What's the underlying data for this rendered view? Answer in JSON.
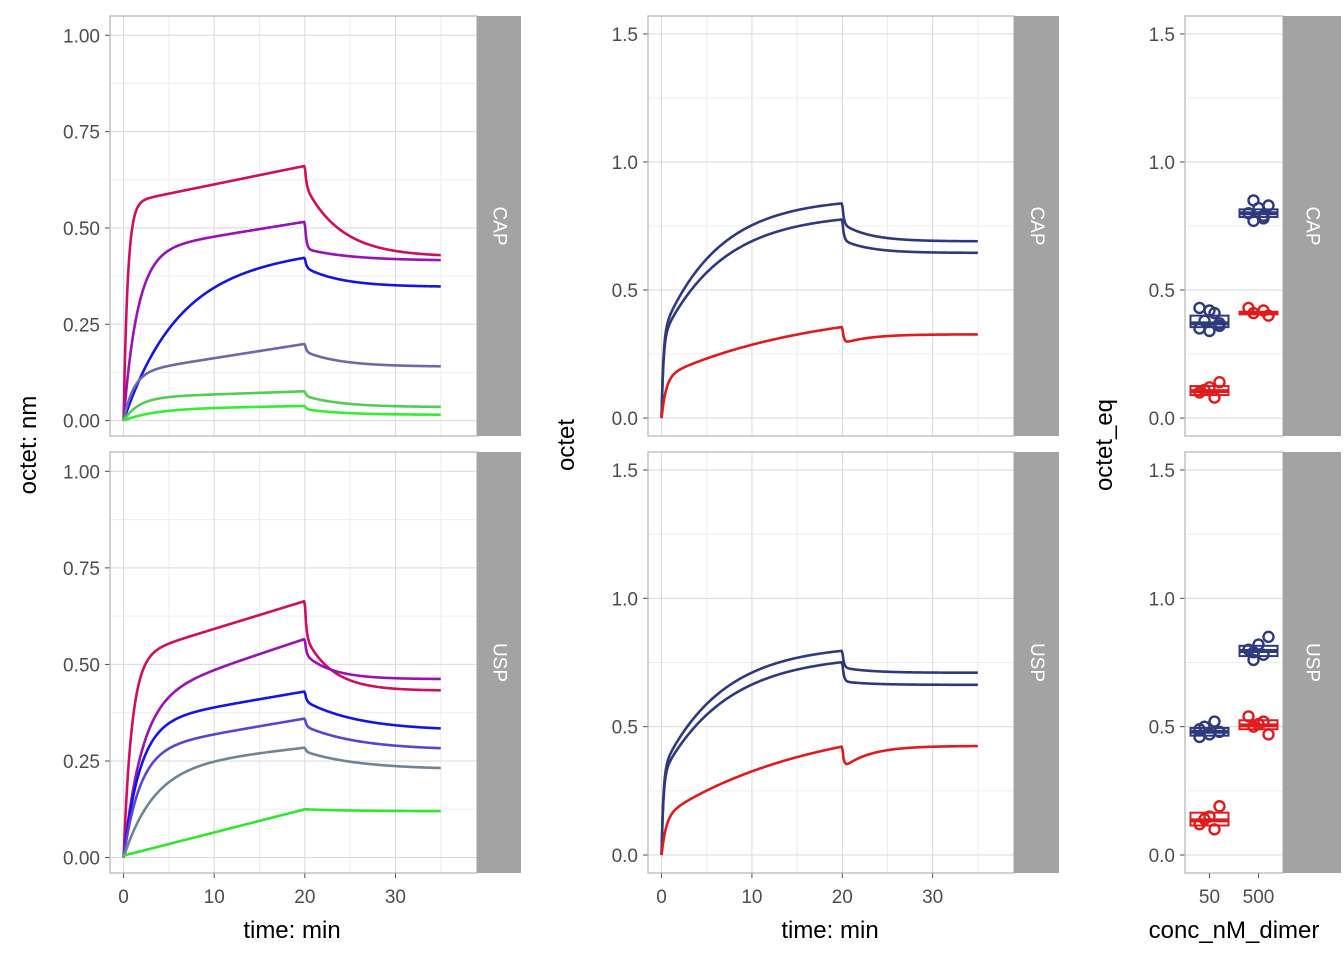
{
  "colors": {
    "panel_border": "#b3b3b3",
    "grid_major": "#d9d9d9",
    "grid_minor": "#ededed",
    "strip_fill": "#a3a3a3",
    "navy": "#2e3a7d",
    "red": "#e31a1c"
  },
  "chart_data": [
    {
      "id": "kinetics",
      "type": "line",
      "xlabel": "time: min",
      "ylabel": "octet: nm",
      "xlim": [
        -1.5,
        39
      ],
      "ylim": [
        -0.04,
        1.05
      ],
      "x_ticks": [
        0,
        10,
        20,
        30
      ],
      "x_tick_labels": [
        "0",
        "10",
        "20",
        "30"
      ],
      "y_ticks": [
        0,
        0.25,
        0.5,
        0.75,
        1
      ],
      "y_tick_labels": [
        "0.00",
        "0.25",
        "0.50",
        "0.75",
        "1.00"
      ],
      "grid": true,
      "legend": "none",
      "facets": [
        {
          "label": "CAP",
          "series": [
            {
              "color": "#d00d5f",
              "kind": "ass_diss",
              "rmax": 0.565,
              "kon": 2.2,
              "slope": 0.0048,
              "tail": 0.425,
              "drop": 0.05,
              "tau": 4
            },
            {
              "color": "#9a11b4",
              "kind": "ass_diss",
              "rmax": 0.44,
              "kon": 0.65,
              "slope": 0.0038,
              "tail": 0.415,
              "drop": 0.07,
              "tau": 5
            },
            {
              "color": "#1414e6",
              "kind": "ass_diss",
              "rmax": 0.4,
              "kon": 0.17,
              "slope": 0.0018,
              "tail": 0.347,
              "drop": 0.025,
              "tau": 4
            },
            {
              "color": "#6b68ad",
              "kind": "ass_diss",
              "rmax": 0.125,
              "kon": 0.9,
              "slope": 0.0037,
              "tail": 0.14,
              "drop": 0.02,
              "tau": 4
            },
            {
              "color": "#52cc52",
              "kind": "ass_diss",
              "rmax": 0.06,
              "kon": 0.6,
              "slope": 0.0008,
              "tail": 0.035,
              "drop": 0.012,
              "tau": 4
            },
            {
              "color": "#33ee33",
              "kind": "ass_diss",
              "rmax": 0.03,
              "kon": 0.3,
              "slope": 0.0004,
              "tail": 0.015,
              "drop": 0.008,
              "tau": 4
            }
          ]
        },
        {
          "label": "USP",
          "series": [
            {
              "color": "#d00d5f",
              "kind": "ass_diss",
              "rmax": 0.52,
              "kon": 1.1,
              "slope": 0.0072,
              "tail": 0.432,
              "drop": 0.09,
              "tau": 3
            },
            {
              "color": "#9a11b4",
              "kind": "ass_diss",
              "rmax": 0.41,
              "kon": 0.5,
              "slope": 0.0078,
              "tail": 0.462,
              "drop": 0.04,
              "tau": 3
            },
            {
              "color": "#1414e6",
              "kind": "ass_diss",
              "rmax": 0.35,
              "kon": 0.55,
              "slope": 0.004,
              "tail": 0.328,
              "drop": 0.025,
              "tau": 6
            },
            {
              "color": "#5c44d2",
              "kind": "ass_diss",
              "rmax": 0.28,
              "kon": 0.55,
              "slope": 0.004,
              "tail": 0.278,
              "drop": 0.02,
              "tau": 6
            },
            {
              "color": "#6e8597",
              "kind": "ass_diss",
              "rmax": 0.235,
              "kon": 0.3,
              "slope": 0.0025,
              "tail": 0.228,
              "drop": 0.01,
              "tau": 6
            },
            {
              "color": "#2ee82e",
              "kind": "linear",
              "y0": 0.005,
              "slope": 0.006,
              "tail": 0.12,
              "drop": 0.0,
              "tau": 5
            }
          ]
        }
      ]
    },
    {
      "id": "fits",
      "type": "line",
      "xlabel": "time: min",
      "ylabel": "octet",
      "xlim": [
        -1.5,
        39
      ],
      "ylim": [
        -0.07,
        1.57
      ],
      "x_ticks": [
        0,
        10,
        20,
        30
      ],
      "x_tick_labels": [
        "0",
        "10",
        "20",
        "30"
      ],
      "y_ticks": [
        0,
        0.5,
        1,
        1.5
      ],
      "y_tick_labels": [
        "0.0",
        "0.5",
        "1.0",
        "1.5"
      ],
      "grid": true,
      "legend": "none",
      "facets": [
        {
          "label": "CAP",
          "series": [
            {
              "color": "#2e3a7d",
              "kind": "fit",
              "y0": 0.0,
              "a": 0.33,
              "kfast": 5,
              "b": 0.53,
              "kslow": 0.16,
              "tail": 0.69,
              "drop": 0.08,
              "tau": 3
            },
            {
              "color": "#2e3a7d",
              "kind": "fit",
              "y0": 0.0,
              "a": 0.31,
              "kfast": 5,
              "b": 0.49,
              "kslow": 0.15,
              "tail": 0.645,
              "drop": 0.08,
              "tau": 3
            },
            {
              "color": "#e31a1c",
              "kind": "fit",
              "y0": 0.0,
              "a": 0.16,
              "kfast": 2,
              "b": 0.28,
              "kslow": 0.06,
              "tail": 0.327,
              "drop": 0.065,
              "tau": 3
            }
          ]
        },
        {
          "label": "USP",
          "series": [
            {
              "color": "#2e3a7d",
              "kind": "fit",
              "y0": 0.0,
              "a": 0.33,
              "kfast": 5,
              "b": 0.49,
              "kslow": 0.15,
              "tail": 0.71,
              "drop": 0.065,
              "tau": 3
            },
            {
              "color": "#2e3a7d",
              "kind": "fit",
              "y0": 0.0,
              "a": 0.31,
              "kfast": 5,
              "b": 0.47,
              "kslow": 0.14,
              "tail": 0.663,
              "drop": 0.075,
              "tau": 3
            },
            {
              "color": "#e31a1c",
              "kind": "fit",
              "y0": 0.0,
              "a": 0.15,
              "kfast": 2,
              "b": 0.39,
              "kslow": 0.06,
              "tail": 0.425,
              "drop": 0.085,
              "tau": 3
            }
          ]
        }
      ]
    },
    {
      "id": "equilibrium",
      "type": "box",
      "xlabel": "conc_nM_dimer",
      "ylabel": "octet_eq",
      "categories": [
        "50",
        "500"
      ],
      "ylim": [
        -0.07,
        1.57
      ],
      "y_ticks": [
        0,
        0.5,
        1,
        1.5
      ],
      "y_tick_labels": [
        "0.0",
        "0.5",
        "1.0",
        "1.5"
      ],
      "grid": true,
      "legend": "none",
      "facets": [
        {
          "label": "CAP",
          "groups": [
            {
              "category": "50",
              "color": "#2e3a7d",
              "q1": 0.355,
              "median": 0.37,
              "q3": 0.4,
              "points": [
                0.35,
                0.34,
                0.37,
                0.38,
                0.41,
                0.43,
                0.42,
                0.36
              ]
            },
            {
              "category": "50",
              "color": "#e31a1c",
              "q1": 0.09,
              "median": 0.105,
              "q3": 0.125,
              "points": [
                0.08,
                0.1,
                0.12,
                0.14,
                0.11
              ]
            },
            {
              "category": "500",
              "color": "#2e3a7d",
              "q1": 0.785,
              "median": 0.8,
              "q3": 0.815,
              "points": [
                0.77,
                0.78,
                0.8,
                0.82,
                0.83,
                0.85,
                0.79
              ]
            },
            {
              "category": "500",
              "color": "#e31a1c",
              "q1": 0.405,
              "median": 0.41,
              "q3": 0.415,
              "points": [
                0.4,
                0.41,
                0.42,
                0.43
              ]
            }
          ]
        },
        {
          "label": "USP",
          "groups": [
            {
              "category": "50",
              "color": "#2e3a7d",
              "q1": 0.465,
              "median": 0.48,
              "q3": 0.495,
              "points": [
                0.46,
                0.47,
                0.48,
                0.5,
                0.52,
                0.49
              ]
            },
            {
              "category": "50",
              "color": "#e31a1c",
              "q1": 0.115,
              "median": 0.135,
              "q3": 0.165,
              "points": [
                0.1,
                0.12,
                0.15,
                0.19,
                0.14
              ]
            },
            {
              "category": "500",
              "color": "#2e3a7d",
              "q1": 0.775,
              "median": 0.795,
              "q3": 0.815,
              "points": [
                0.76,
                0.78,
                0.8,
                0.82,
                0.85,
                0.79
              ]
            },
            {
              "category": "500",
              "color": "#e31a1c",
              "q1": 0.49,
              "median": 0.505,
              "q3": 0.525,
              "points": [
                0.47,
                0.5,
                0.52,
                0.54,
                0.51
              ]
            }
          ]
        }
      ]
    }
  ]
}
